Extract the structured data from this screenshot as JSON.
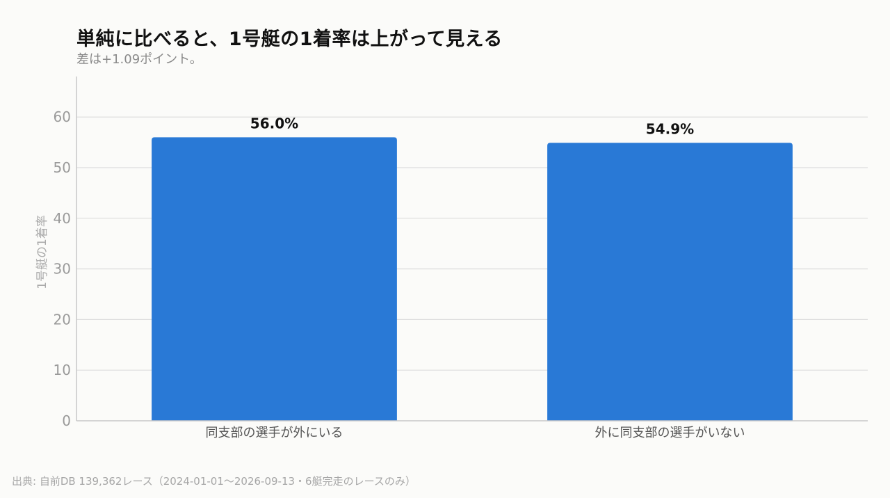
{
  "chart_data": {
    "type": "bar",
    "title": "単純に比べると、1号艇の1着率は上がって見える",
    "subtitle": "差は+1.09ポイント。",
    "xlabel": "",
    "ylabel": "1号艇の1着率",
    "categories": [
      "同支部の選手が外にいる",
      "外に同支部の選手がいない"
    ],
    "values": [
      56.0,
      54.9
    ],
    "data_labels": [
      "56.0%",
      "54.9%"
    ],
    "ylim": [
      0,
      68
    ],
    "yticks": [
      0,
      10,
      20,
      30,
      40,
      50,
      60
    ],
    "grid": true,
    "legend": "none",
    "bar_color": "#2979d6",
    "source": "出典: 自前DB 139,362レース（2024-01-01〜2026-09-13・6艇完走のレースのみ）"
  }
}
